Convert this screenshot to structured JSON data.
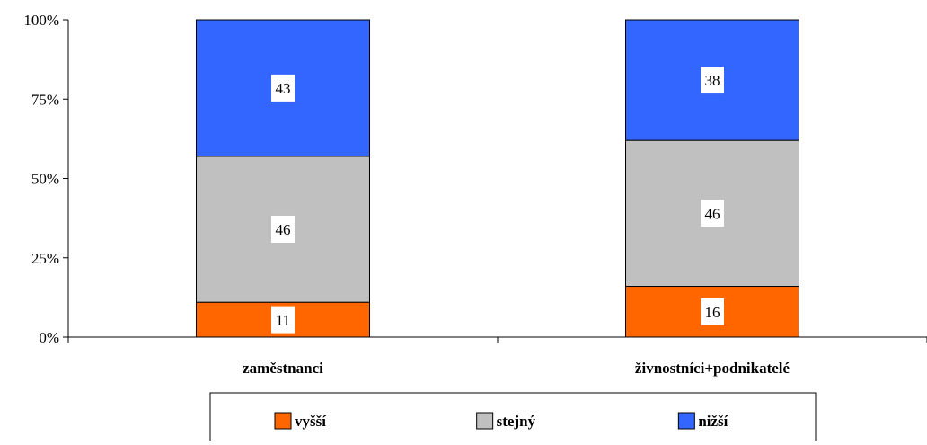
{
  "chart_data": {
    "type": "bar",
    "stacked": true,
    "percent": true,
    "categories": [
      "zaměstnanci",
      "živnostníci+podnikatelé"
    ],
    "series": [
      {
        "name": "vyšší",
        "values": [
          11,
          16
        ],
        "color": "#FF6600"
      },
      {
        "name": "stejný",
        "values": [
          46,
          46
        ],
        "color": "#C0C0C0"
      },
      {
        "name": "nižší",
        "values": [
          43,
          38
        ],
        "color": "#3366FF"
      }
    ],
    "ylim": [
      0,
      100
    ],
    "yticks": [
      "0%",
      "25%",
      "50%",
      "75%",
      "100%"
    ],
    "ytick_values": [
      0,
      25,
      50,
      75,
      100
    ],
    "title": "",
    "xlabel": "",
    "ylabel": "",
    "grid": false,
    "legend_position": "bottom"
  }
}
